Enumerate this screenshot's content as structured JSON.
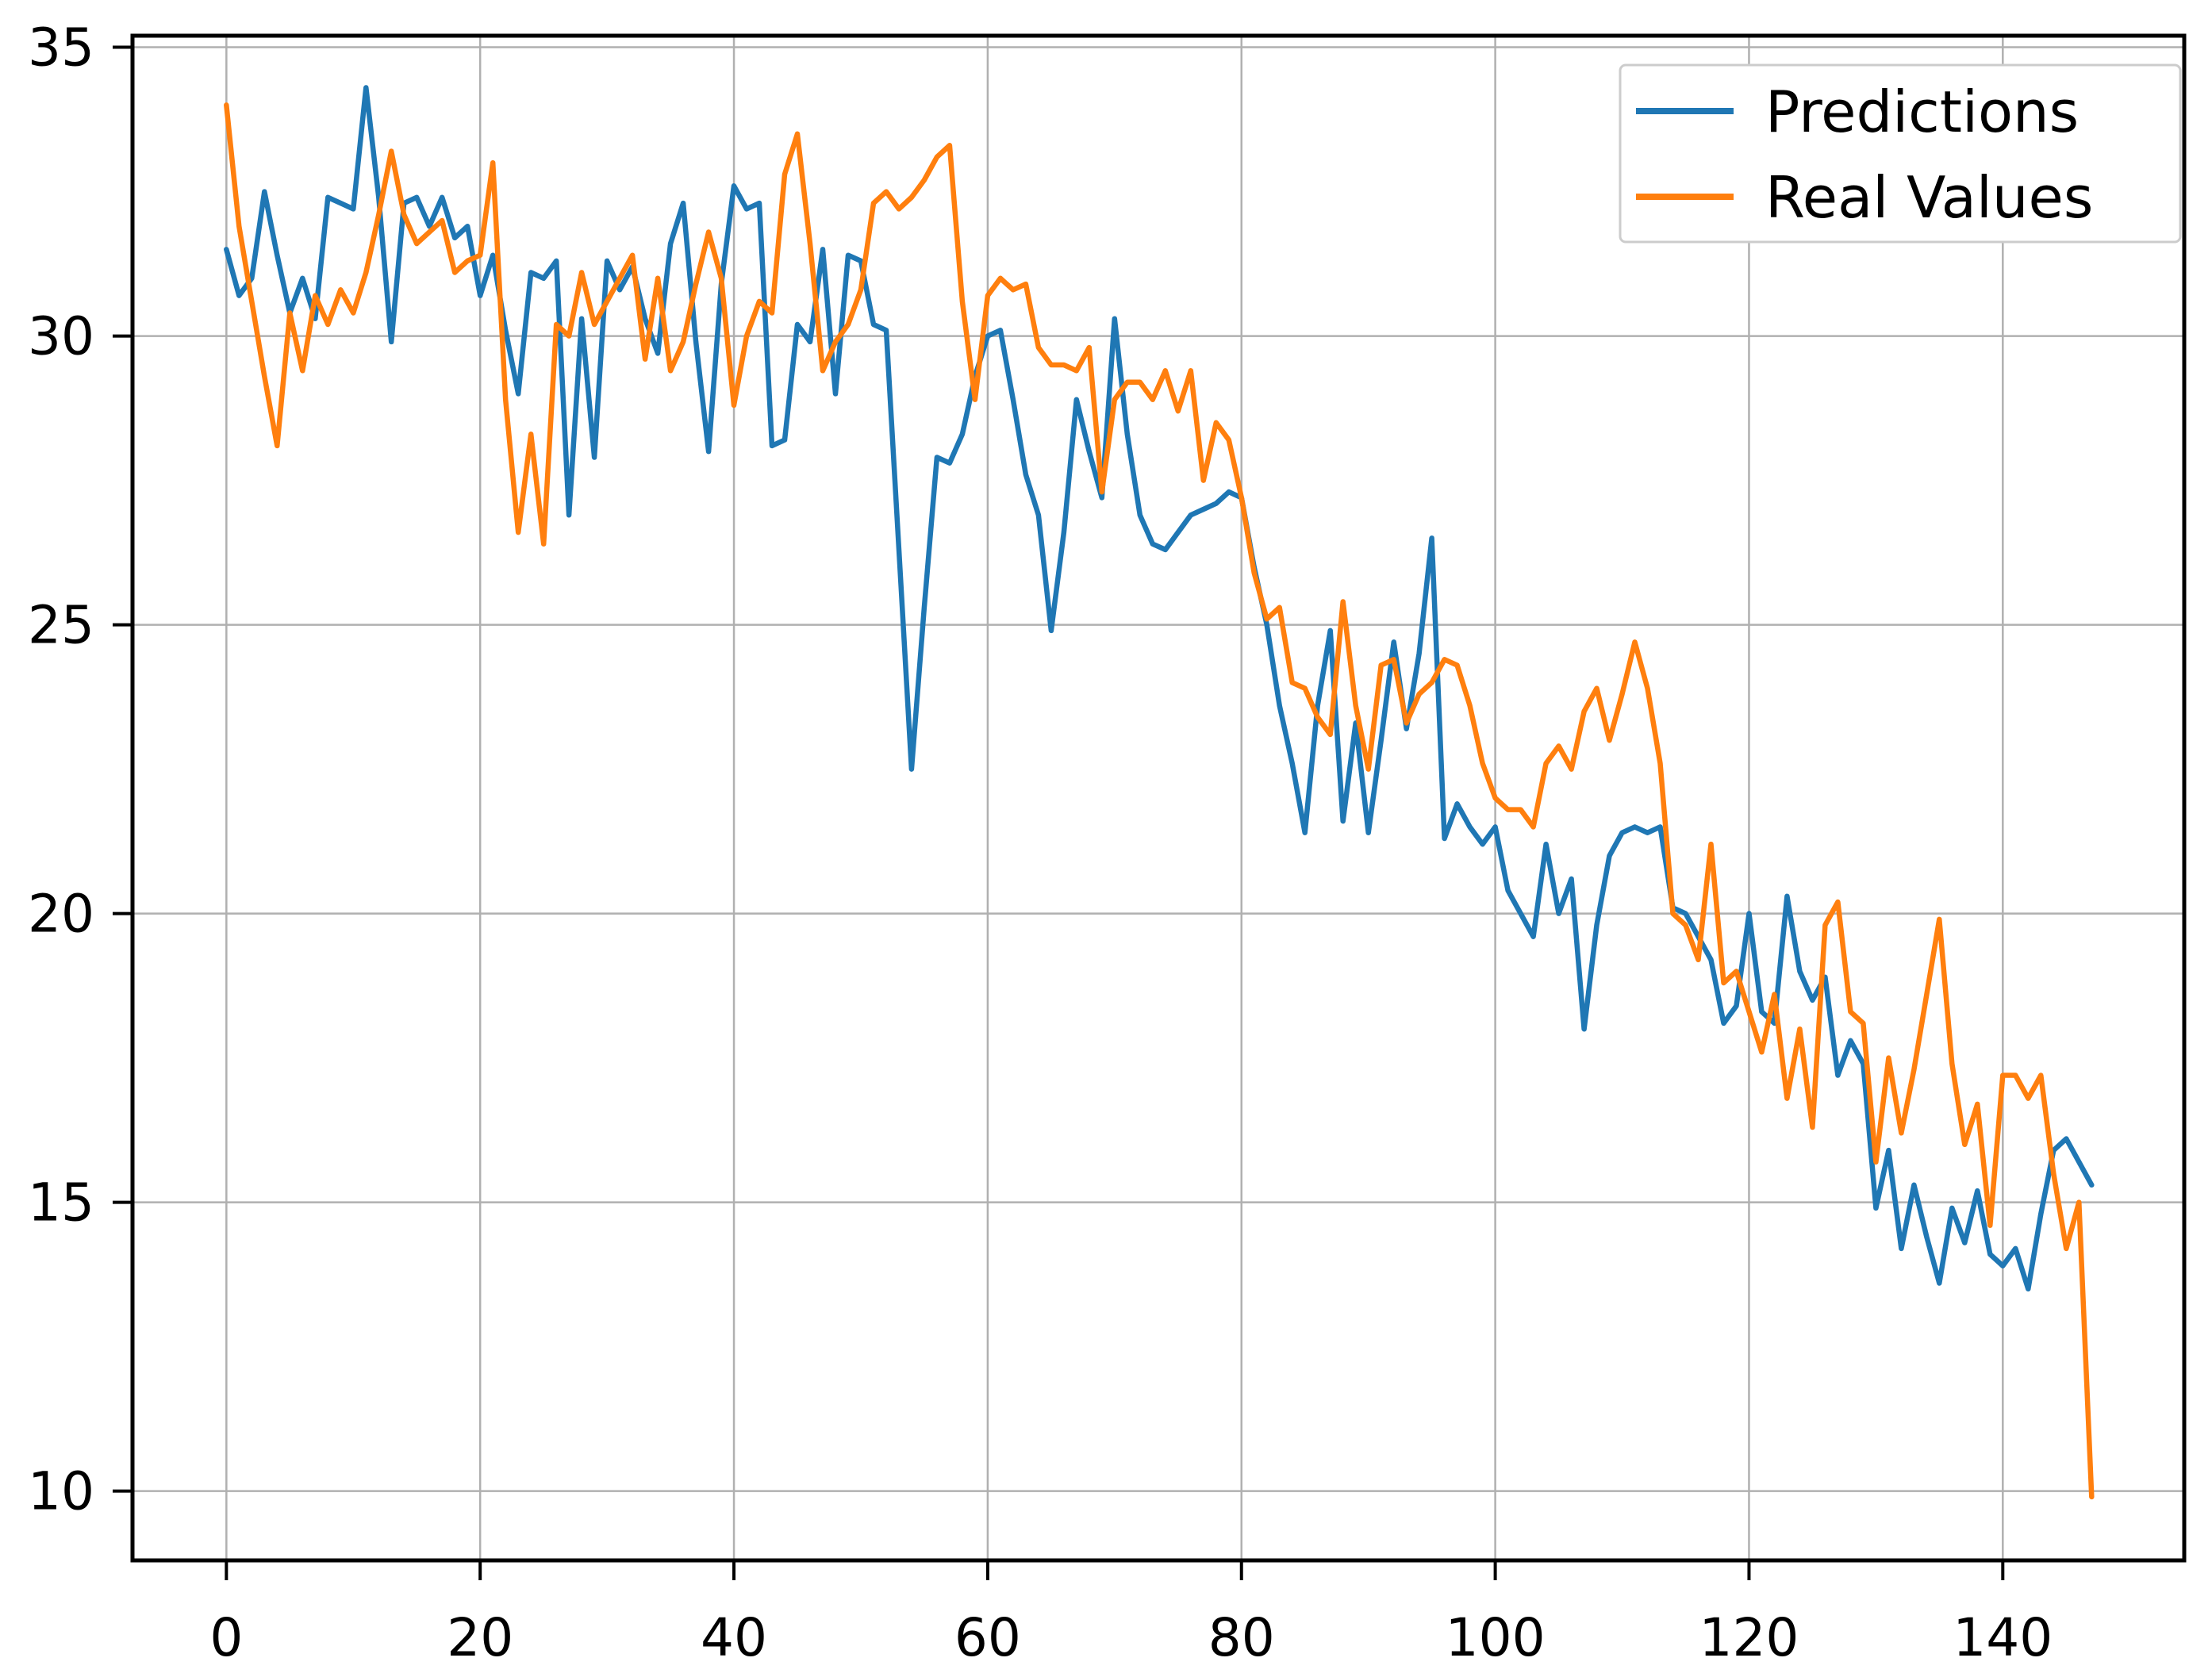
{
  "chart_data": {
    "type": "line",
    "title": "",
    "xlabel": "",
    "ylabel": "",
    "xlim": [
      -7.4,
      154.3
    ],
    "ylim": [
      8.8,
      35.2
    ],
    "xticks": [
      0,
      20,
      40,
      60,
      80,
      100,
      120,
      140
    ],
    "yticks": [
      10,
      15,
      20,
      25,
      30,
      35
    ],
    "grid": true,
    "legend": {
      "position": "upper right",
      "entries": [
        "Predictions",
        "Real Values"
      ]
    },
    "series": [
      {
        "name": "Predictions",
        "color": "#1f77b4",
        "values": [
          31.5,
          30.7,
          31.0,
          32.5,
          31.4,
          30.4,
          31.0,
          30.3,
          32.4,
          32.3,
          32.2,
          34.3,
          32.4,
          29.9,
          32.3,
          32.4,
          31.9,
          32.4,
          31.7,
          31.9,
          30.7,
          31.4,
          30.1,
          29.0,
          31.1,
          31.0,
          31.3,
          26.9,
          30.3,
          27.9,
          31.3,
          30.8,
          31.2,
          30.3,
          29.7,
          31.6,
          32.3,
          29.9,
          28.0,
          30.9,
          32.6,
          32.2,
          32.3,
          28.1,
          28.2,
          30.2,
          29.9,
          31.5,
          29.0,
          31.4,
          31.3,
          30.2,
          30.1,
          26.3,
          22.5,
          25.3,
          27.9,
          27.8,
          28.3,
          29.3,
          30.0,
          30.1,
          28.9,
          27.6,
          26.9,
          24.9,
          26.6,
          28.9,
          28.0,
          27.2,
          30.3,
          28.3,
          26.9,
          26.4,
          26.3,
          26.6,
          26.9,
          27.0,
          27.1,
          27.3,
          27.2,
          26.0,
          25.0,
          23.6,
          22.6,
          21.4,
          23.6,
          24.9,
          21.6,
          23.3,
          21.4,
          23.0,
          24.7,
          23.2,
          24.5,
          26.5,
          21.3,
          21.9,
          21.5,
          21.2,
          21.5,
          20.4,
          20.0,
          19.6,
          21.2,
          20.0,
          20.6,
          18.0,
          19.8,
          21.0,
          21.4,
          21.5,
          21.4,
          21.5,
          20.1,
          20.0,
          19.6,
          19.2,
          18.1,
          18.4,
          20.0,
          18.3,
          18.1,
          20.3,
          19.0,
          18.5,
          18.9,
          17.2,
          17.8,
          17.4,
          14.9,
          15.9,
          14.2,
          15.3,
          14.4,
          13.6,
          14.9,
          14.3,
          15.2,
          14.1,
          13.9,
          14.2,
          13.5,
          14.8,
          15.9,
          16.1,
          15.7,
          15.3
        ]
      },
      {
        "name": "Real Values",
        "color": "#ff7f0e",
        "values": [
          34.0,
          31.9,
          30.6,
          29.3,
          28.1,
          30.4,
          29.4,
          30.7,
          30.2,
          30.8,
          30.4,
          31.1,
          32.1,
          33.2,
          32.1,
          31.6,
          31.8,
          32.0,
          31.1,
          31.3,
          31.4,
          33.0,
          28.9,
          26.6,
          28.3,
          26.4,
          30.2,
          30.0,
          31.1,
          30.2,
          30.6,
          31.0,
          31.4,
          29.6,
          31.0,
          29.4,
          29.9,
          30.9,
          31.8,
          31.0,
          28.8,
          30.0,
          30.6,
          30.4,
          32.8,
          33.5,
          31.6,
          29.4,
          29.9,
          30.2,
          30.8,
          32.3,
          32.5,
          32.2,
          32.4,
          32.7,
          33.1,
          33.3,
          30.6,
          28.9,
          30.7,
          31.0,
          30.8,
          30.9,
          29.8,
          29.5,
          29.5,
          29.4,
          29.8,
          27.3,
          28.9,
          29.2,
          29.2,
          28.9,
          29.4,
          28.7,
          29.4,
          27.5,
          28.5,
          28.2,
          27.2,
          25.9,
          25.1,
          25.3,
          24.0,
          23.9,
          23.4,
          23.1,
          25.4,
          23.6,
          22.5,
          24.3,
          24.4,
          23.3,
          23.8,
          24.0,
          24.4,
          24.3,
          23.6,
          22.6,
          22.0,
          21.8,
          21.8,
          21.5,
          22.6,
          22.9,
          22.5,
          23.5,
          23.9,
          23.0,
          23.8,
          24.7,
          23.9,
          22.6,
          20.0,
          19.8,
          19.2,
          21.2,
          18.8,
          19.0,
          18.3,
          17.6,
          18.6,
          16.8,
          18.0,
          16.3,
          19.8,
          20.2,
          18.3,
          18.1,
          15.7,
          17.5,
          16.2,
          17.3,
          18.6,
          19.9,
          17.4,
          16.0,
          16.7,
          14.6,
          17.2,
          17.2,
          16.8,
          17.2,
          15.5,
          14.2,
          15.0,
          9.9
        ]
      }
    ]
  },
  "style": {
    "background_color": "#ffffff",
    "grid_color": "#b0b0b0",
    "spine_color": "#000000",
    "tick_color": "#000000",
    "tick_label_color": "#000000",
    "legend_border_color": "#cccccc",
    "legend_background": "#ffffff",
    "legend_text_color": "#000000"
  }
}
